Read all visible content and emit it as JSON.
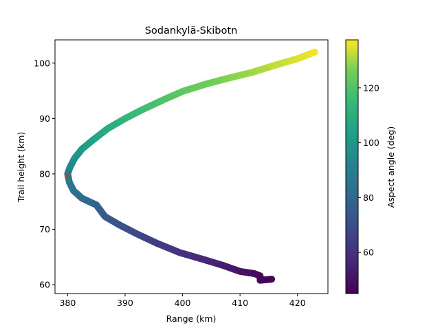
{
  "chart_data": {
    "type": "scatter",
    "title": "Sodankylä-Skibotn",
    "xlabel": "Range (km)",
    "ylabel": "Trail height (km)",
    "xlim": [
      377.8,
      425.3
    ],
    "ylim": [
      58.4,
      104.2
    ],
    "xticks": [
      380,
      390,
      400,
      410,
      420
    ],
    "yticks": [
      60,
      70,
      80,
      90,
      100
    ],
    "grid": false,
    "colorbar": {
      "label": "Aspect angle (deg)",
      "colormap": "viridis",
      "range": [
        45.0,
        137.5
      ],
      "ticks": [
        60,
        80,
        100,
        120
      ]
    },
    "trail": {
      "points": [
        {
          "range": 423.0,
          "height": 102.0,
          "aspect": 137.0
        },
        {
          "range": 420.0,
          "height": 100.8,
          "aspect": 135.0
        },
        {
          "range": 416.0,
          "height": 99.6,
          "aspect": 133.0
        },
        {
          "range": 412.0,
          "height": 98.3,
          "aspect": 130.0
        },
        {
          "range": 408.0,
          "height": 97.3,
          "aspect": 128.0
        },
        {
          "range": 404.0,
          "height": 96.2,
          "aspect": 125.5
        },
        {
          "range": 400.0,
          "height": 94.9,
          "aspect": 123.0
        },
        {
          "range": 396.5,
          "height": 93.3,
          "aspect": 120.0
        },
        {
          "range": 393.0,
          "height": 91.6,
          "aspect": 117.0
        },
        {
          "range": 390.0,
          "height": 90.0,
          "aspect": 114.0
        },
        {
          "range": 387.0,
          "height": 88.2,
          "aspect": 110.0
        },
        {
          "range": 384.5,
          "height": 86.2,
          "aspect": 106.0
        },
        {
          "range": 382.5,
          "height": 84.5,
          "aspect": 102.0
        },
        {
          "range": 381.2,
          "height": 82.8,
          "aspect": 98.0
        },
        {
          "range": 380.4,
          "height": 81.2,
          "aspect": 94.0
        },
        {
          "range": 380.0,
          "height": 80.0,
          "aspect": 91.0
        },
        {
          "range": 380.3,
          "height": 78.5,
          "aspect": 88.0
        },
        {
          "range": 381.0,
          "height": 77.0,
          "aspect": 85.0
        },
        {
          "range": 382.5,
          "height": 75.6,
          "aspect": 82.0
        },
        {
          "range": 385.0,
          "height": 74.4,
          "aspect": 78.5
        },
        {
          "range": 386.5,
          "height": 72.3,
          "aspect": 75.0
        },
        {
          "range": 389.0,
          "height": 70.8,
          "aspect": 71.5
        },
        {
          "range": 392.0,
          "height": 69.2,
          "aspect": 68.0
        },
        {
          "range": 395.5,
          "height": 67.5,
          "aspect": 64.5
        },
        {
          "range": 399.5,
          "height": 65.8,
          "aspect": 61.0
        },
        {
          "range": 403.5,
          "height": 64.6,
          "aspect": 57.5
        },
        {
          "range": 407.0,
          "height": 63.5,
          "aspect": 54.0
        },
        {
          "range": 410.0,
          "height": 62.4,
          "aspect": 51.0
        },
        {
          "range": 412.5,
          "height": 62.0,
          "aspect": 49.0
        },
        {
          "range": 413.5,
          "height": 61.6,
          "aspect": 47.5
        },
        {
          "range": 413.5,
          "height": 60.8,
          "aspect": 46.5
        },
        {
          "range": 415.5,
          "height": 61.0,
          "aspect": 46.0
        }
      ]
    },
    "marker": {
      "range": 380.0,
      "height": 79.8,
      "symbol": "x",
      "color": "#d62728"
    }
  }
}
